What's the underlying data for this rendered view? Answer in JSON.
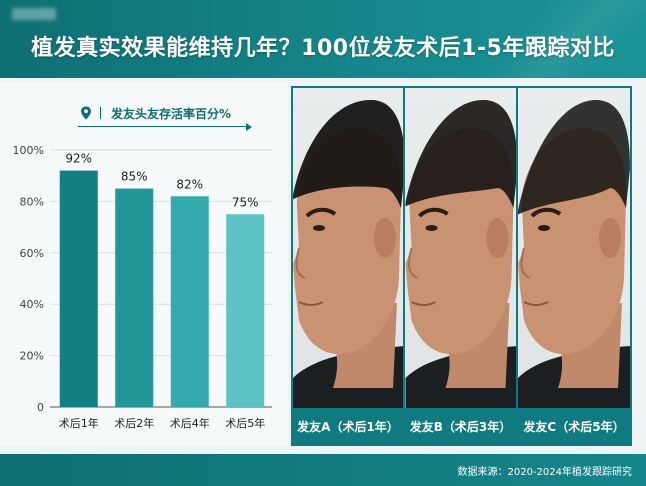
{
  "header": {
    "title": "植发真实效果能维持几年？100位发友术后1-5年跟踪对比"
  },
  "legend": {
    "icon": "location-pin-icon",
    "text": "发友头友存活率百分%"
  },
  "chart_data": {
    "type": "bar",
    "categories": [
      "术后1年",
      "术后2年",
      "术后4年",
      "术后5年"
    ],
    "values": [
      92,
      85,
      82,
      75
    ],
    "value_labels": [
      "92%",
      "85%",
      "82%",
      "75%"
    ],
    "ylim": [
      0,
      100
    ],
    "yticks": [
      "0",
      "20%",
      "40%",
      "60%",
      "80%",
      "100%"
    ],
    "ytick_values": [
      0,
      20,
      40,
      60,
      80,
      100
    ],
    "grid": true,
    "colors": [
      "#137f84",
      "#23969a",
      "#34aaae",
      "#5cc2c5"
    ]
  },
  "photos": [
    {
      "caption": "发友A（术后1年）",
      "hair_density": 0.92
    },
    {
      "caption": "发友B（术后3年）",
      "hair_density": 0.84
    },
    {
      "caption": "发友C（术后5年）",
      "hair_density": 0.75
    }
  ],
  "footer": {
    "source": "数据来源：2020-2024年植发跟踪研究"
  },
  "colors": {
    "brand": "#137f84",
    "header_bg": "#15868b",
    "background": "#eef3f4"
  }
}
